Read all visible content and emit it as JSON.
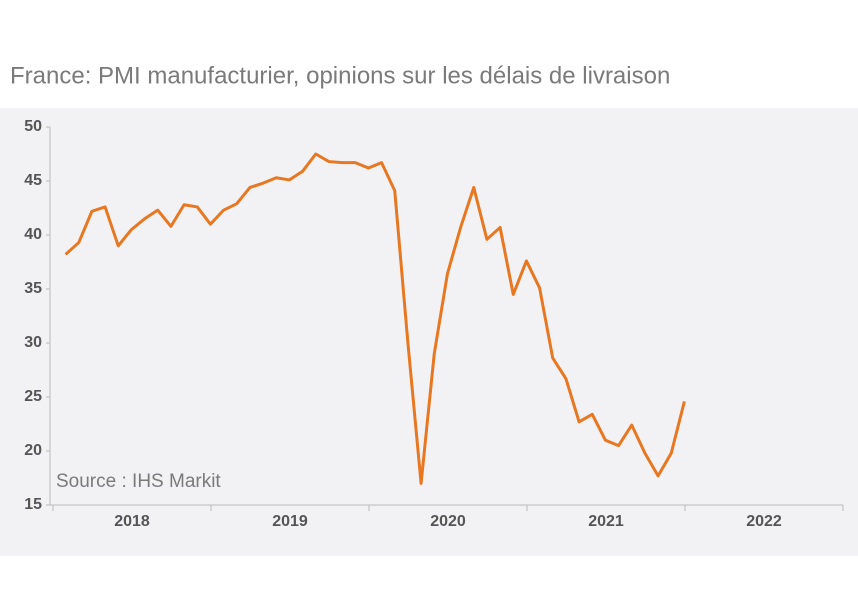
{
  "chart_data": {
    "type": "line",
    "title": "France: PMI manufacturier, opinions sur les délais de livraison",
    "source": "Source : IHS Markit",
    "groups": [
      "2018",
      "2019",
      "2020",
      "2021",
      "2022"
    ],
    "series": [
      {
        "name": "Délais de livraison",
        "color": "#e87722",
        "values": [
          38.2,
          39.3,
          42.2,
          42.6,
          39.0,
          40.5,
          41.5,
          42.3,
          40.8,
          42.8,
          42.6,
          41.0,
          42.3,
          42.9,
          44.4,
          44.8,
          45.3,
          45.1,
          45.9,
          47.5,
          46.8,
          46.7,
          46.7,
          46.2,
          46.7,
          44.1,
          30.0,
          17.0,
          29.0,
          36.4,
          40.7,
          44.4,
          39.6,
          40.7,
          34.5,
          37.6,
          35.1,
          28.6,
          26.7,
          22.7,
          23.4,
          21.0,
          20.5,
          22.4,
          19.8,
          17.7,
          19.8,
          24.6,
          null,
          null,
          null,
          null,
          null,
          null,
          null,
          null,
          null,
          null,
          null,
          null
        ]
      }
    ],
    "ylim": [
      15,
      50
    ],
    "yticks": [
      15,
      20,
      25,
      30,
      35,
      40,
      45,
      50
    ]
  }
}
